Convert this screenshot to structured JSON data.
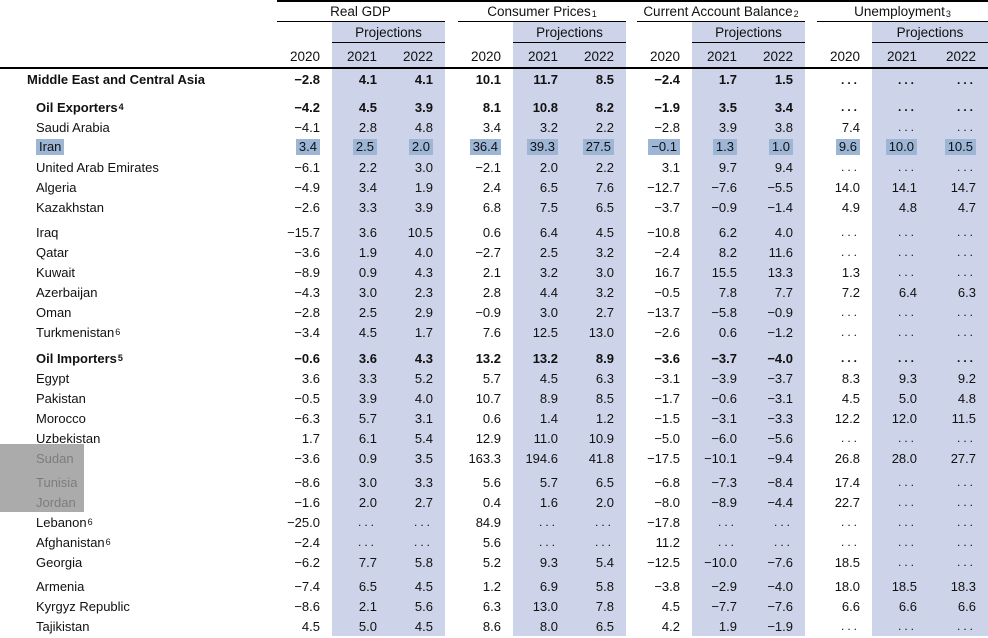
{
  "colors": {
    "projection_band": "#cdd3e8",
    "selection_highlight": "#9db6d6"
  },
  "table": {
    "groups": [
      {
        "title": "Real GDP",
        "sup": "",
        "projections": "Projections",
        "years": [
          "2020",
          "2021",
          "2022"
        ]
      },
      {
        "title": "Consumer Prices",
        "sup": "1",
        "projections": "Projections",
        "years": [
          "2020",
          "2021",
          "2022"
        ]
      },
      {
        "title": "Current Account Balance",
        "sup": "2",
        "projections": "Projections",
        "years": [
          "2020",
          "2021",
          "2022"
        ]
      },
      {
        "title": "Unemployment",
        "sup": "3",
        "projections": "Projections",
        "years": [
          "2020",
          "2021",
          "2022"
        ]
      }
    ],
    "rows": [
      {
        "label": "Middle East and Central Asia",
        "sup": "",
        "style": "region",
        "values": [
          "−2.8",
          "4.1",
          "4.1",
          "10.1",
          "11.7",
          "8.5",
          "−2.4",
          "1.7",
          "1.5",
          "...",
          "...",
          "..."
        ]
      },
      {
        "spacer": true,
        "h": 7
      },
      {
        "label": "Oil Exporters",
        "sup": "4",
        "style": "bold",
        "values": [
          "−4.2",
          "4.5",
          "3.9",
          "8.1",
          "10.8",
          "8.2",
          "−1.9",
          "3.5",
          "3.4",
          "...",
          "...",
          "..."
        ]
      },
      {
        "label": "Saudi Arabia",
        "sup": "",
        "values": [
          "−4.1",
          "2.8",
          "4.8",
          "3.4",
          "3.2",
          "2.2",
          "−2.8",
          "3.9",
          "3.8",
          "7.4",
          "...",
          "..."
        ]
      },
      {
        "label": "Iran",
        "sup": "",
        "highlight": true,
        "values": [
          "3.4",
          "2.5",
          "2.0",
          "36.4",
          "39.3",
          "27.5",
          "−0.1",
          "1.3",
          "1.0",
          "9.6",
          "10.0",
          "10.5"
        ]
      },
      {
        "label": "United Arab Emirates",
        "sup": "",
        "values": [
          "−6.1",
          "2.2",
          "3.0",
          "−2.1",
          "2.0",
          "2.2",
          "3.1",
          "9.7",
          "9.4",
          "...",
          "...",
          "..."
        ]
      },
      {
        "label": "Algeria",
        "sup": "",
        "values": [
          "−4.9",
          "3.4",
          "1.9",
          "2.4",
          "6.5",
          "7.6",
          "−12.7",
          "−7.6",
          "−5.5",
          "14.0",
          "14.1",
          "14.7"
        ]
      },
      {
        "label": "Kazakhstan",
        "sup": "",
        "values": [
          "−2.6",
          "3.3",
          "3.9",
          "6.8",
          "7.5",
          "6.5",
          "−3.7",
          "−0.9",
          "−1.4",
          "4.9",
          "4.8",
          "4.7"
        ]
      },
      {
        "spacer": true,
        "h": 5
      },
      {
        "label": "Iraq",
        "sup": "",
        "values": [
          "−15.7",
          "3.6",
          "10.5",
          "0.6",
          "6.4",
          "4.5",
          "−10.8",
          "6.2",
          "4.0",
          "...",
          "...",
          "..."
        ]
      },
      {
        "label": "Qatar",
        "sup": "",
        "values": [
          "−3.6",
          "1.9",
          "4.0",
          "−2.7",
          "2.5",
          "3.2",
          "−2.4",
          "8.2",
          "11.6",
          "...",
          "...",
          "..."
        ]
      },
      {
        "label": "Kuwait",
        "sup": "",
        "values": [
          "−8.9",
          "0.9",
          "4.3",
          "2.1",
          "3.2",
          "3.0",
          "16.7",
          "15.5",
          "13.3",
          "1.3",
          "...",
          "..."
        ]
      },
      {
        "label": "Azerbaijan",
        "sup": "",
        "values": [
          "−4.3",
          "3.0",
          "2.3",
          "2.8",
          "4.4",
          "3.2",
          "−0.5",
          "7.8",
          "7.7",
          "7.2",
          "6.4",
          "6.3"
        ]
      },
      {
        "label": "Oman",
        "sup": "",
        "values": [
          "−2.8",
          "2.5",
          "2.9",
          "−0.9",
          "3.0",
          "2.7",
          "−13.7",
          "−5.8",
          "−0.9",
          "...",
          "...",
          "..."
        ]
      },
      {
        "label": "Turkmenistan",
        "sup": "6",
        "values": [
          "−3.4",
          "4.5",
          "1.7",
          "7.6",
          "12.5",
          "13.0",
          "−2.6",
          "0.6",
          "−1.2",
          "...",
          "...",
          "..."
        ]
      },
      {
        "spacer": true,
        "h": 6
      },
      {
        "label": "Oil Importers",
        "sup": "5",
        "style": "bold",
        "values": [
          "−0.6",
          "3.6",
          "4.3",
          "13.2",
          "13.2",
          "8.9",
          "−3.6",
          "−3.7",
          "−4.0",
          "...",
          "...",
          "..."
        ]
      },
      {
        "label": "Egypt",
        "sup": "",
        "values": [
          "3.6",
          "3.3",
          "5.2",
          "5.7",
          "4.5",
          "6.3",
          "−3.1",
          "−3.9",
          "−3.7",
          "8.3",
          "9.3",
          "9.2"
        ]
      },
      {
        "label": "Pakistan",
        "sup": "",
        "values": [
          "−0.5",
          "3.9",
          "4.0",
          "10.7",
          "8.9",
          "8.5",
          "−1.7",
          "−0.6",
          "−3.1",
          "4.5",
          "5.0",
          "4.8"
        ]
      },
      {
        "label": "Morocco",
        "sup": "",
        "values": [
          "−6.3",
          "5.7",
          "3.1",
          "0.6",
          "1.4",
          "1.2",
          "−1.5",
          "−3.1",
          "−3.3",
          "12.2",
          "12.0",
          "11.5"
        ]
      },
      {
        "label": "Uzbekistan",
        "sup": "",
        "values": [
          "1.7",
          "6.1",
          "5.4",
          "12.9",
          "11.0",
          "10.9",
          "−5.0",
          "−6.0",
          "−5.6",
          "...",
          "...",
          "..."
        ]
      },
      {
        "label": "Sudan",
        "sup": "",
        "values": [
          "−3.6",
          "0.9",
          "3.5",
          "163.3",
          "194.6",
          "41.8",
          "−17.5",
          "−10.1",
          "−9.4",
          "26.8",
          "28.0",
          "27.7"
        ]
      },
      {
        "spacer": true,
        "h": 4
      },
      {
        "label": "Tunisia",
        "sup": "",
        "values": [
          "−8.6",
          "3.0",
          "3.3",
          "5.6",
          "5.7",
          "6.5",
          "−6.8",
          "−7.3",
          "−8.4",
          "17.4",
          "...",
          "..."
        ]
      },
      {
        "label": "Jordan",
        "sup": "",
        "values": [
          "−1.6",
          "2.0",
          "2.7",
          "0.4",
          "1.6",
          "2.0",
          "−8.0",
          "−8.9",
          "−4.4",
          "22.7",
          "...",
          "..."
        ]
      },
      {
        "label": "Lebanon",
        "sup": "6",
        "values": [
          "−25.0",
          "...",
          "...",
          "84.9",
          "...",
          "...",
          "−17.8",
          "...",
          "...",
          "...",
          "...",
          "..."
        ]
      },
      {
        "label": "Afghanistan",
        "sup": "6",
        "values": [
          "−2.4",
          "...",
          "...",
          "5.6",
          "...",
          "...",
          "11.2",
          "...",
          "...",
          "...",
          "...",
          "..."
        ]
      },
      {
        "label": "Georgia",
        "sup": "",
        "values": [
          "−6.2",
          "7.7",
          "5.8",
          "5.2",
          "9.3",
          "5.4",
          "−12.5",
          "−10.0",
          "−7.6",
          "18.5",
          "...",
          "..."
        ]
      },
      {
        "spacer": true,
        "h": 4
      },
      {
        "label": "Armenia",
        "sup": "",
        "values": [
          "−7.4",
          "6.5",
          "4.5",
          "1.2",
          "6.9",
          "5.8",
          "−3.8",
          "−2.9",
          "−4.0",
          "18.0",
          "18.5",
          "18.3"
        ]
      },
      {
        "label": "Kyrgyz Republic",
        "sup": "",
        "values": [
          "−8.6",
          "2.1",
          "5.6",
          "6.3",
          "13.0",
          "7.8",
          "4.5",
          "−7.7",
          "−7.6",
          "6.6",
          "6.6",
          "6.6"
        ]
      },
      {
        "label": "Tajikistan",
        "sup": "",
        "values": [
          "4.5",
          "5.0",
          "4.5",
          "8.6",
          "8.0",
          "6.5",
          "4.2",
          "1.9",
          "−1.9",
          "...",
          "...",
          "..."
        ]
      }
    ]
  }
}
